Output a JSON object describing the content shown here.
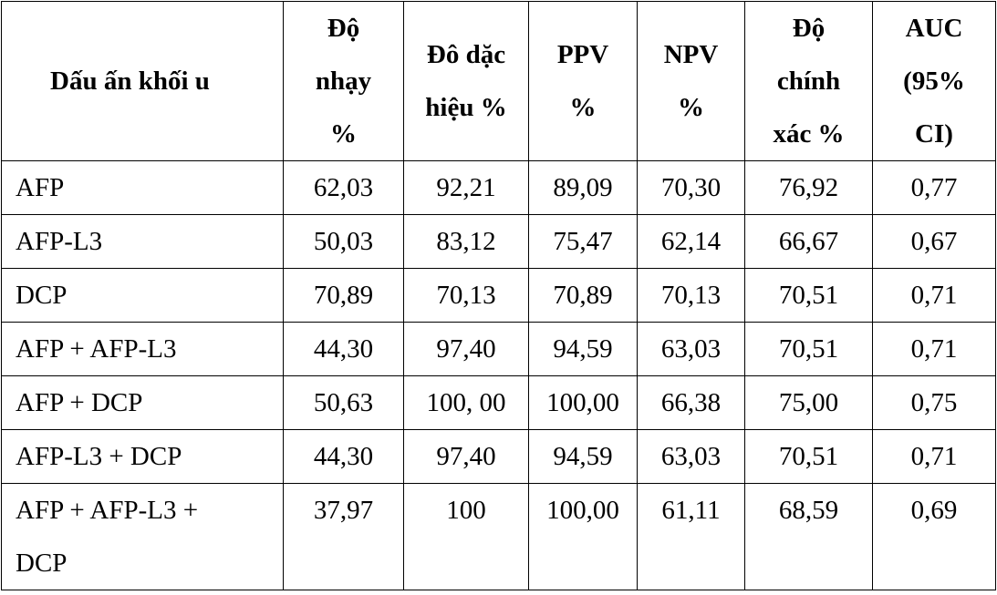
{
  "table": {
    "headers": [
      [
        "Dấu ấn khối u"
      ],
      [
        "Độ",
        "nhạy",
        "%"
      ],
      [
        "Đô dặc",
        "hiệu %"
      ],
      [
        "PPV",
        "%"
      ],
      [
        "NPV",
        "%"
      ],
      [
        "Độ",
        "chính",
        "xác %"
      ],
      [
        "AUC",
        "(95%",
        "CI)"
      ]
    ],
    "rows": [
      [
        "AFP",
        "62,03",
        "92,21",
        "89,09",
        "70,30",
        "76,92",
        "0,77"
      ],
      [
        "AFP-L3",
        "50,03",
        "83,12",
        "75,47",
        "62,14",
        "66,67",
        "0,67"
      ],
      [
        "DCP",
        "70,89",
        "70,13",
        "70,89",
        "70,13",
        "70,51",
        "0,71"
      ],
      [
        "AFP + AFP-L3",
        "44,30",
        "97,40",
        "94,59",
        "63,03",
        "70,51",
        "0,71"
      ],
      [
        "AFP + DCP",
        "50,63",
        "100, 00",
        "100,00",
        "66,38",
        "75,00",
        "0,75"
      ],
      [
        "AFP-L3 + DCP",
        "44,30",
        "97,40",
        "94,59",
        "63,03",
        "70,51",
        "0,71"
      ],
      [
        "AFP + AFP-L3 + DCP",
        "37,97",
        "100",
        "100,00",
        "61,11",
        "68,59",
        "0,69"
      ]
    ],
    "last_row_name_lines": [
      "AFP + AFP-L3 +",
      "DCP"
    ]
  }
}
